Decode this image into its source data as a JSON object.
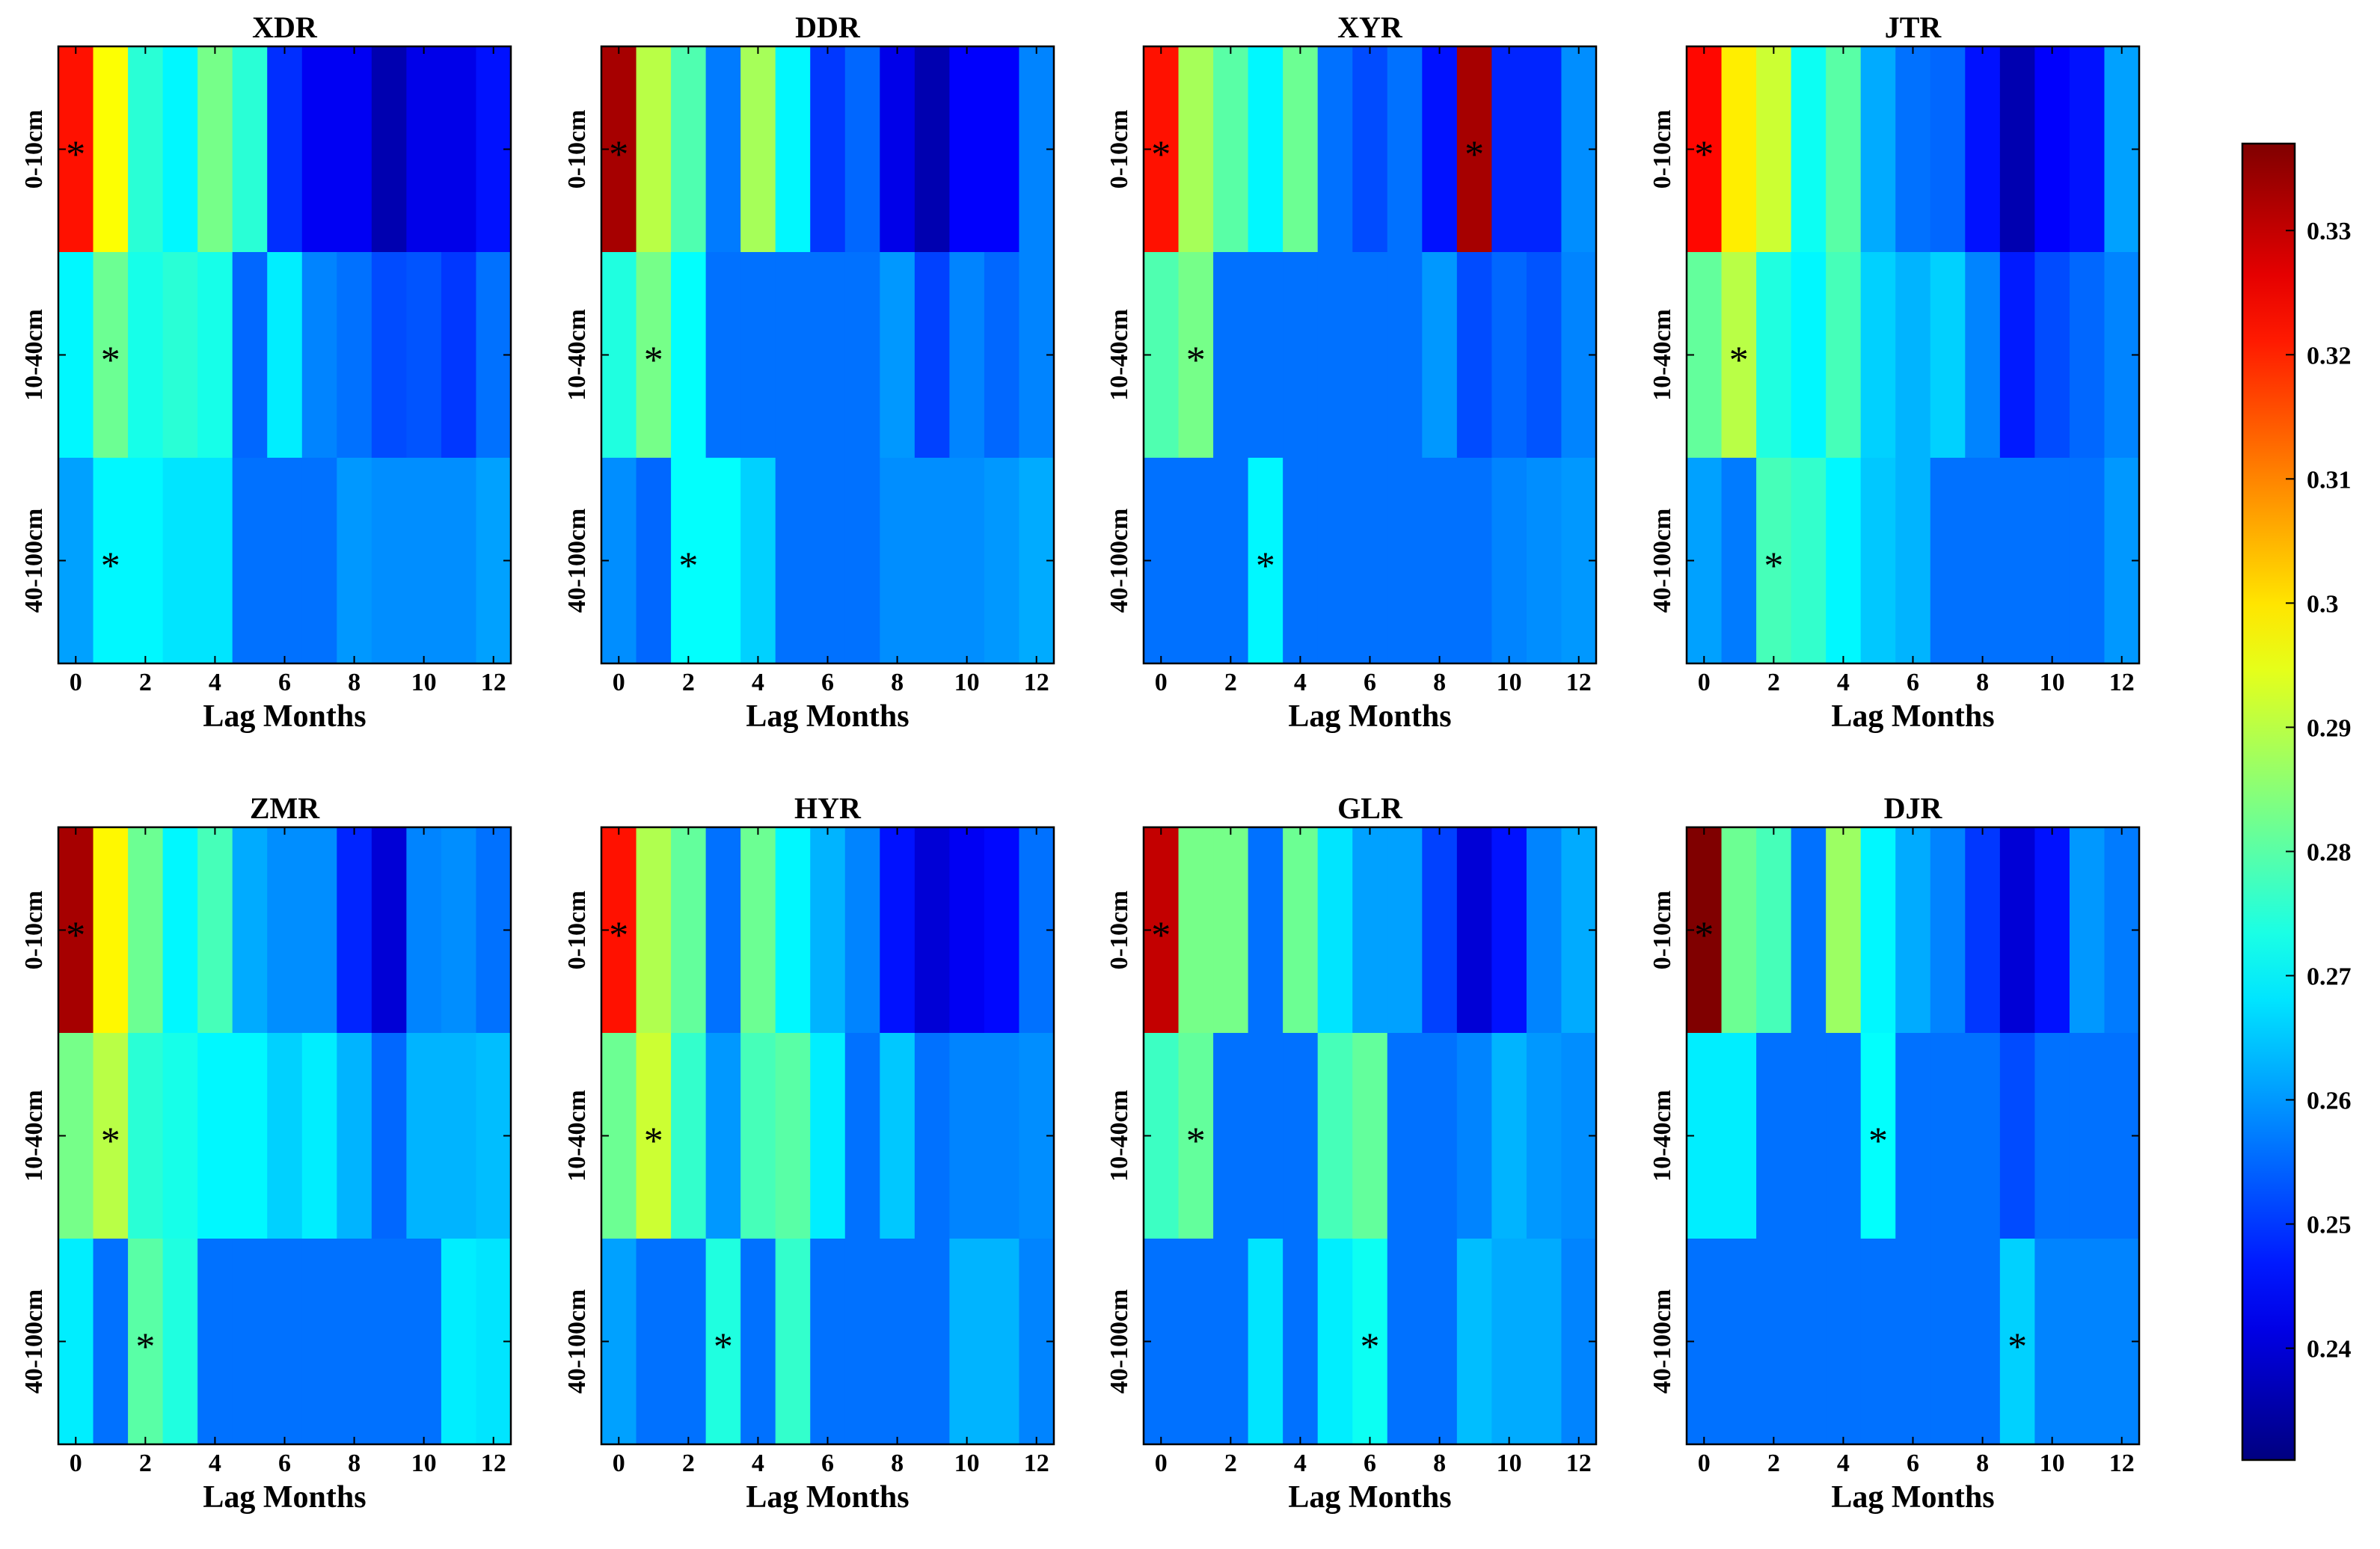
{
  "chart_data": {
    "type": "heatmap",
    "layout": "2x4 grid of heatmaps sharing one colorbar",
    "xlabel": "Lag Months",
    "x": [
      0,
      1,
      2,
      3,
      4,
      5,
      6,
      7,
      8,
      9,
      10,
      11,
      12
    ],
    "x_ticks": [
      "0",
      "2",
      "4",
      "6",
      "8",
      "10",
      "12"
    ],
    "rows": [
      "0-10cm",
      "10-40cm",
      "40-100cm"
    ],
    "colormap": "jet",
    "colorbar": {
      "min": 0.231,
      "max": 0.337,
      "ticks": [
        0.24,
        0.25,
        0.26,
        0.27,
        0.28,
        0.29,
        0.3,
        0.31,
        0.32,
        0.33
      ],
      "tick_labels": [
        "0.24",
        "0.25",
        "0.26",
        "0.27",
        "0.28",
        "0.29",
        "0.3",
        "0.31",
        "0.32",
        "0.33"
      ],
      "position": "right"
    },
    "significance_marker": "*",
    "panels": [
      {
        "title": "XDR",
        "values": [
          [
            0.322,
            0.297,
            0.275,
            0.27,
            0.283,
            0.275,
            0.249,
            0.243,
            0.243,
            0.236,
            0.242,
            0.242,
            0.246
          ],
          [
            0.27,
            0.282,
            0.273,
            0.275,
            0.273,
            0.255,
            0.269,
            0.258,
            0.256,
            0.252,
            0.253,
            0.25,
            0.256
          ],
          [
            0.261,
            0.27,
            0.27,
            0.268,
            0.268,
            0.256,
            0.256,
            0.256,
            0.26,
            0.259,
            0.259,
            0.259,
            0.261
          ]
        ],
        "stars": [
          [
            0,
            0
          ],
          [
            1,
            1
          ],
          [
            2,
            1
          ]
        ]
      },
      {
        "title": "DDR",
        "values": [
          [
            0.333,
            0.29,
            0.279,
            0.257,
            0.288,
            0.27,
            0.25,
            0.255,
            0.242,
            0.236,
            0.244,
            0.244,
            0.258
          ],
          [
            0.274,
            0.283,
            0.271,
            0.256,
            0.256,
            0.256,
            0.256,
            0.256,
            0.26,
            0.251,
            0.258,
            0.255,
            0.258
          ],
          [
            0.259,
            0.255,
            0.271,
            0.271,
            0.266,
            0.256,
            0.256,
            0.256,
            0.259,
            0.259,
            0.259,
            0.26,
            0.262
          ]
        ],
        "stars": [
          [
            0,
            0
          ],
          [
            1,
            1
          ],
          [
            2,
            2
          ]
        ]
      },
      {
        "title": "XYR",
        "values": [
          [
            0.322,
            0.288,
            0.28,
            0.27,
            0.282,
            0.256,
            0.252,
            0.256,
            0.246,
            0.333,
            0.248,
            0.248,
            0.259
          ],
          [
            0.279,
            0.283,
            0.256,
            0.256,
            0.256,
            0.256,
            0.256,
            0.256,
            0.26,
            0.252,
            0.255,
            0.253,
            0.258
          ],
          [
            0.256,
            0.256,
            0.256,
            0.27,
            0.256,
            0.256,
            0.256,
            0.256,
            0.256,
            0.256,
            0.258,
            0.259,
            0.26
          ]
        ],
        "stars": [
          [
            0,
            0
          ],
          [
            0,
            9
          ],
          [
            1,
            1
          ],
          [
            2,
            3
          ]
        ]
      },
      {
        "title": "JTR",
        "values": [
          [
            0.323,
            0.299,
            0.292,
            0.272,
            0.28,
            0.262,
            0.256,
            0.255,
            0.246,
            0.236,
            0.244,
            0.246,
            0.261
          ],
          [
            0.281,
            0.29,
            0.274,
            0.27,
            0.278,
            0.266,
            0.263,
            0.266,
            0.258,
            0.247,
            0.252,
            0.255,
            0.258
          ],
          [
            0.261,
            0.257,
            0.278,
            0.276,
            0.27,
            0.265,
            0.263,
            0.256,
            0.256,
            0.256,
            0.256,
            0.256,
            0.26
          ]
        ],
        "stars": [
          [
            0,
            0
          ],
          [
            1,
            1
          ],
          [
            2,
            2
          ]
        ]
      },
      {
        "title": "ZMR",
        "values": [
          [
            0.333,
            0.298,
            0.282,
            0.27,
            0.278,
            0.262,
            0.259,
            0.259,
            0.248,
            0.24,
            0.258,
            0.259,
            0.256
          ],
          [
            0.283,
            0.29,
            0.275,
            0.273,
            0.27,
            0.27,
            0.266,
            0.269,
            0.263,
            0.255,
            0.263,
            0.263,
            0.264
          ],
          [
            0.269,
            0.256,
            0.28,
            0.274,
            0.256,
            0.256,
            0.256,
            0.256,
            0.256,
            0.256,
            0.256,
            0.269,
            0.268
          ]
        ],
        "stars": [
          [
            0,
            0
          ],
          [
            1,
            1
          ],
          [
            2,
            2
          ]
        ]
      },
      {
        "title": "HYR",
        "values": [
          [
            0.322,
            0.289,
            0.281,
            0.256,
            0.282,
            0.27,
            0.263,
            0.258,
            0.246,
            0.24,
            0.243,
            0.245,
            0.256
          ],
          [
            0.282,
            0.292,
            0.276,
            0.26,
            0.278,
            0.28,
            0.269,
            0.256,
            0.265,
            0.256,
            0.258,
            0.258,
            0.259
          ],
          [
            0.261,
            0.256,
            0.256,
            0.274,
            0.256,
            0.276,
            0.256,
            0.256,
            0.256,
            0.256,
            0.263,
            0.263,
            0.258
          ]
        ],
        "stars": [
          [
            0,
            0
          ],
          [
            1,
            1
          ],
          [
            2,
            3
          ]
        ]
      },
      {
        "title": "GLR",
        "values": [
          [
            0.33,
            0.283,
            0.283,
            0.256,
            0.282,
            0.268,
            0.261,
            0.261,
            0.251,
            0.24,
            0.246,
            0.258,
            0.262
          ],
          [
            0.277,
            0.281,
            0.256,
            0.256,
            0.256,
            0.278,
            0.281,
            0.256,
            0.256,
            0.258,
            0.263,
            0.26,
            0.259
          ],
          [
            0.256,
            0.256,
            0.256,
            0.268,
            0.256,
            0.269,
            0.272,
            0.256,
            0.256,
            0.264,
            0.262,
            0.262,
            0.258
          ]
        ],
        "stars": [
          [
            0,
            0
          ],
          [
            1,
            1
          ],
          [
            2,
            6
          ]
        ]
      },
      {
        "title": "DJR",
        "values": [
          [
            0.337,
            0.282,
            0.278,
            0.256,
            0.287,
            0.27,
            0.262,
            0.258,
            0.25,
            0.24,
            0.246,
            0.26,
            0.257
          ],
          [
            0.269,
            0.269,
            0.256,
            0.256,
            0.256,
            0.271,
            0.256,
            0.256,
            0.256,
            0.252,
            0.256,
            0.256,
            0.256
          ],
          [
            0.256,
            0.256,
            0.256,
            0.256,
            0.256,
            0.256,
            0.256,
            0.256,
            0.256,
            0.266,
            0.258,
            0.258,
            0.258
          ]
        ],
        "stars": [
          [
            0,
            0
          ],
          [
            1,
            5
          ],
          [
            2,
            9
          ]
        ]
      }
    ]
  }
}
